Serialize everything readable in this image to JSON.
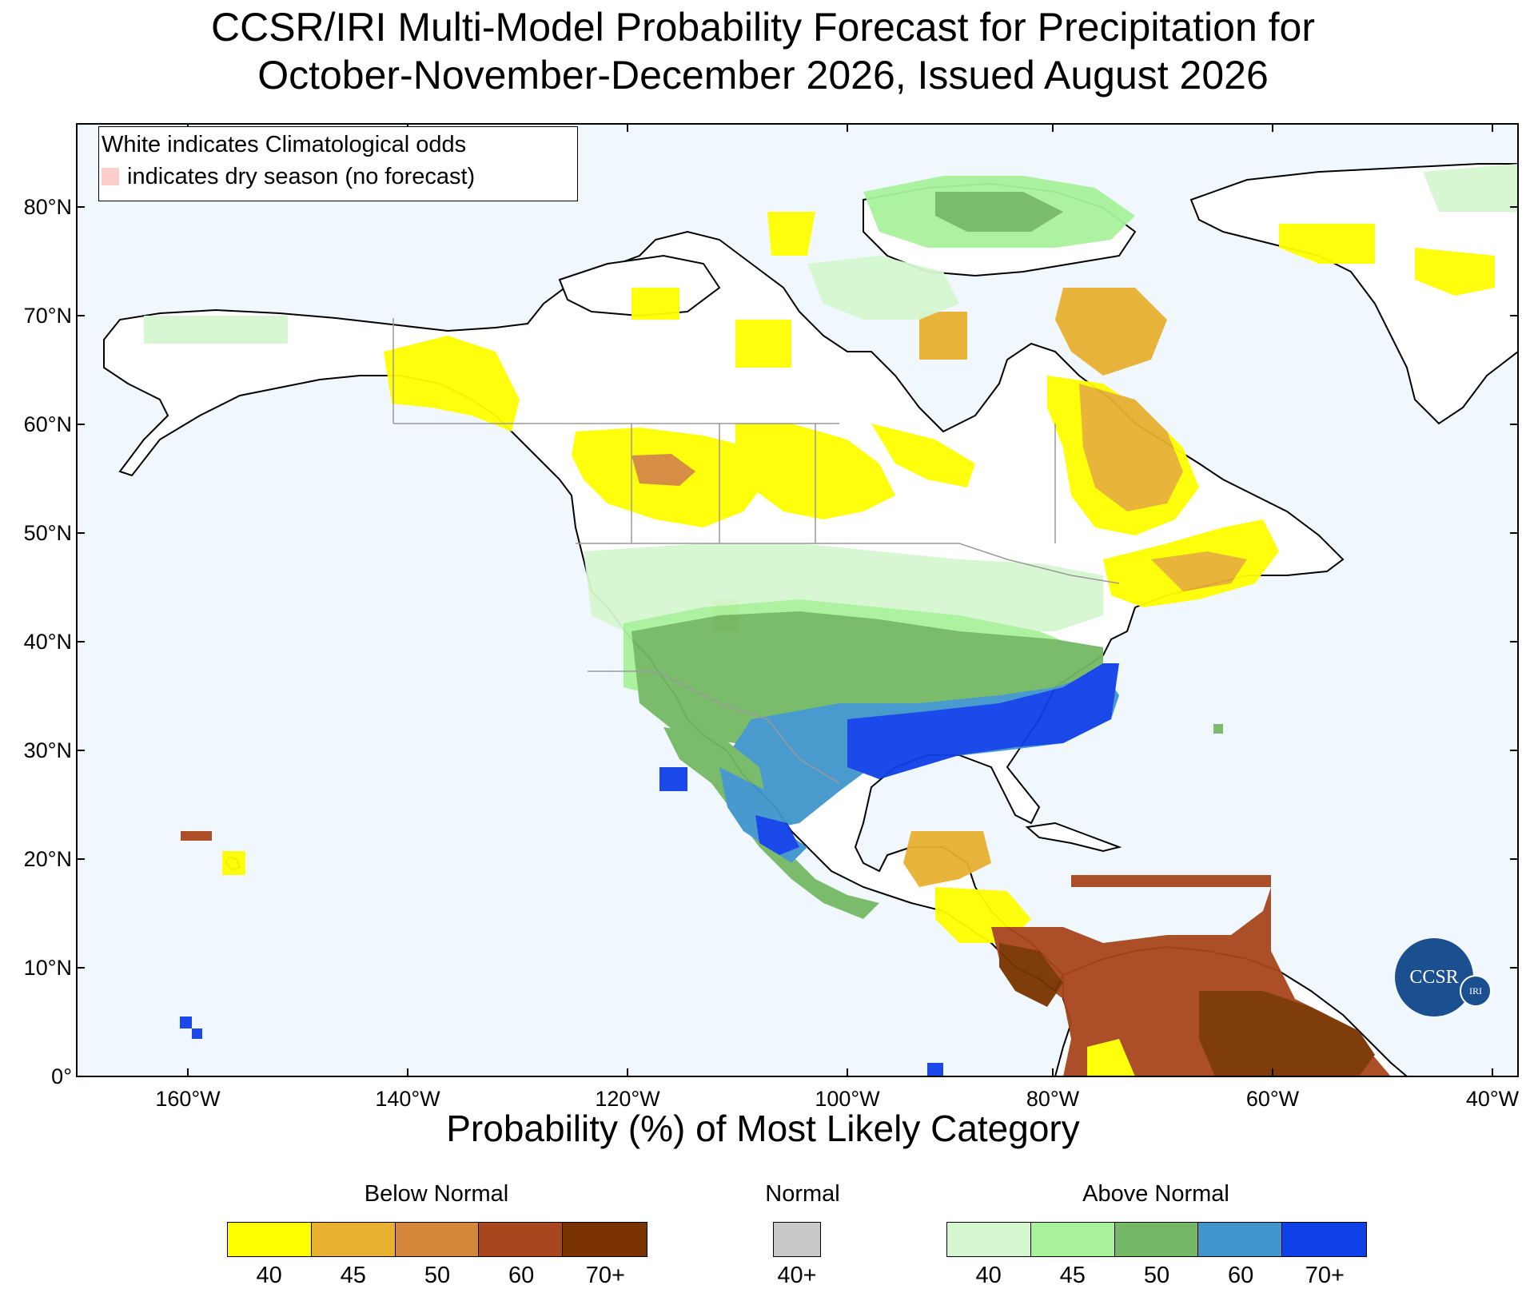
{
  "title_line1": "CCSR/IRI Multi-Model Probability Forecast for Precipitation for",
  "title_line2": "October-November-December 2026, Issued August 2026",
  "legend": {
    "line1": "White indicates Climatological odds",
    "line2": "indicates dry season (no forecast)"
  },
  "axes": {
    "lat_labels": [
      "80°N",
      "70°N",
      "60°N",
      "50°N",
      "40°N",
      "30°N",
      "20°N",
      "10°N",
      "0°"
    ],
    "lon_labels": [
      "160°W",
      "140°W",
      "120°W",
      "100°W",
      "80°W",
      "60°W",
      "40°W"
    ]
  },
  "colorbar": {
    "title": "Probability (%) of Most Likely Category",
    "below_normal": {
      "label": "Below Normal",
      "colors": [
        "#ffff00",
        "#e8b030",
        "#d4873a",
        "#a8461d",
        "#7a3300"
      ],
      "ticks": [
        "40",
        "45",
        "50",
        "60",
        "70+"
      ]
    },
    "normal": {
      "label": "Normal",
      "colors": [
        "#c8c8c8"
      ],
      "ticks": [
        "40+"
      ]
    },
    "above_normal": {
      "label": "Above Normal",
      "colors": [
        "#d4f7d0",
        "#a8f29c",
        "#74b865",
        "#4096cc",
        "#1040e8"
      ],
      "ticks": [
        "40",
        "45",
        "50",
        "60",
        "70+"
      ]
    }
  },
  "logo": {
    "main": "CCSR",
    "small": "IRI"
  },
  "colors": {
    "ocean": "#f0f8fe",
    "land": "#ffffff"
  }
}
